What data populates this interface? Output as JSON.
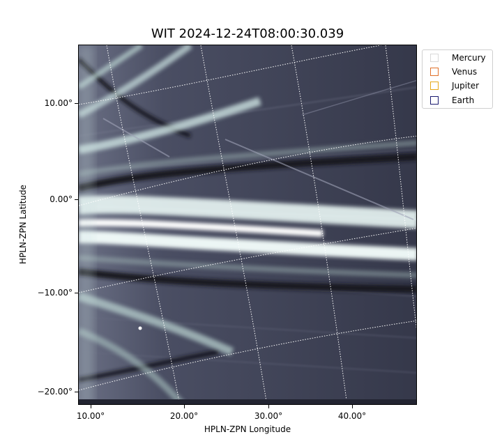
{
  "figure": {
    "title": "WIT 2024-12-24T08:00:30.039",
    "xlabel": "HPLN-ZPN Longitude",
    "ylabel": "HPLN-ZPN Latitude",
    "x_ticks": [
      "10.00°",
      "20.00°",
      "30.00°",
      "40.00°"
    ],
    "y_ticks": [
      "10.00°",
      "0.00°",
      "−10.00°",
      "−20.00°"
    ]
  },
  "legend": {
    "items": [
      {
        "label": "Mercury",
        "color": "#d9d9d9"
      },
      {
        "label": "Venus",
        "color": "#e0702a"
      },
      {
        "label": "Jupiter",
        "color": "#e6a817"
      },
      {
        "label": "Earth",
        "color": "#1a1a6e"
      }
    ]
  },
  "colors": {
    "image_background": "#3b3e52",
    "streamer": "#d8ecea",
    "grid": "#ffffff"
  }
}
